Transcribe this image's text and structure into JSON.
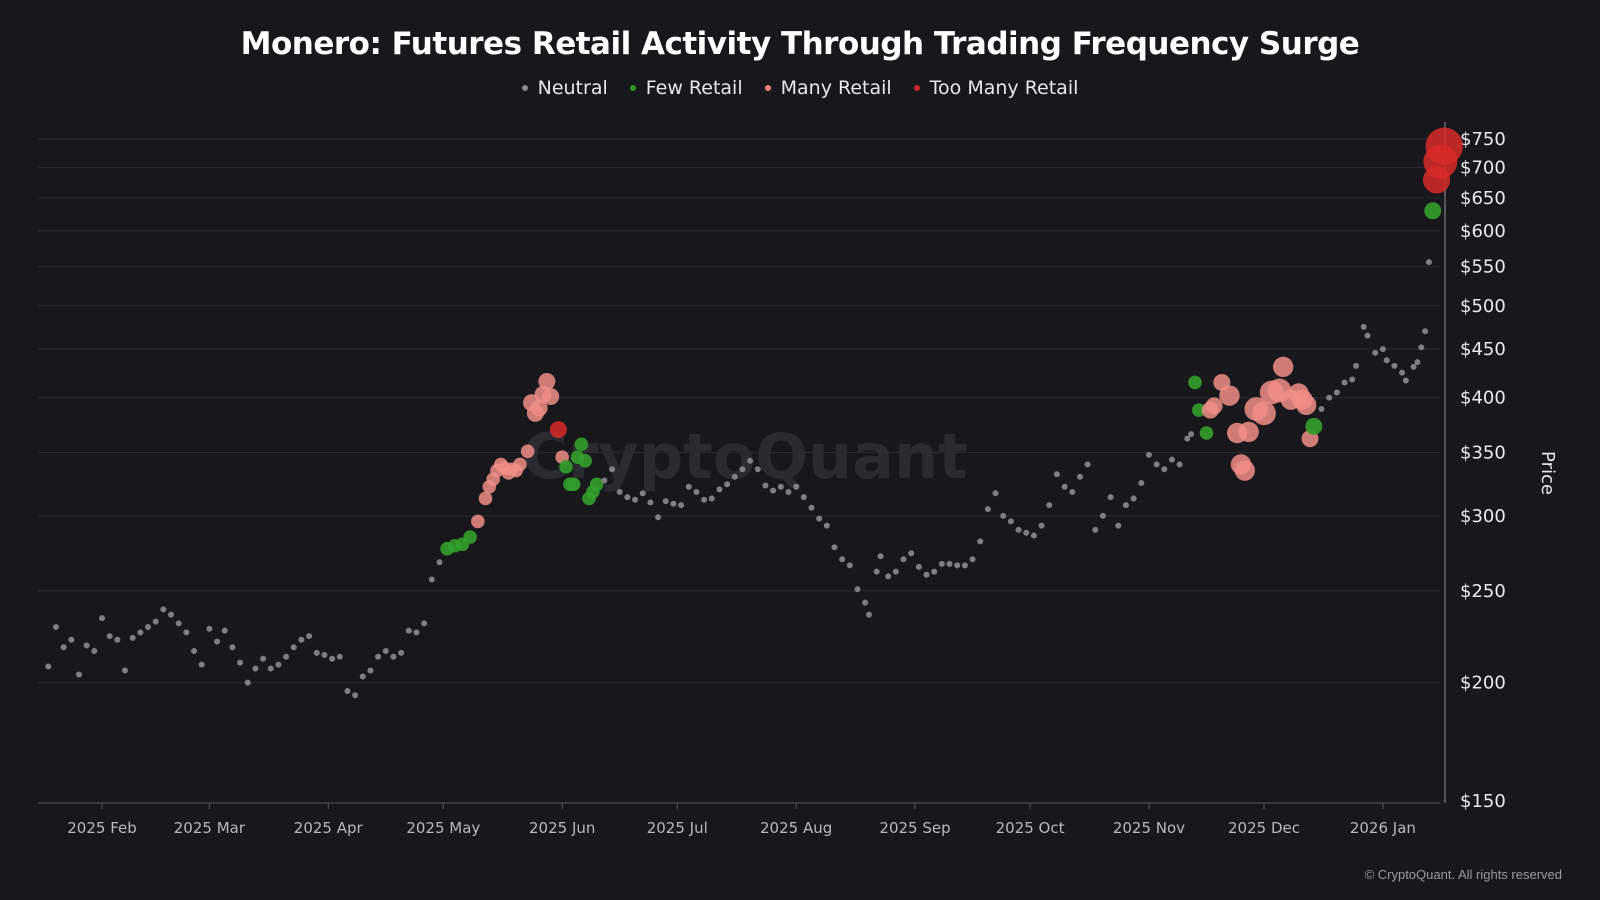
{
  "chart_data": {
    "type": "scatter",
    "title": "Monero: Futures Retail Activity Through Trading Frequency Surge",
    "ylabel": "Price",
    "xlabel": "",
    "y_scale": "log",
    "ylim": [
      150,
      760
    ],
    "y_ticks": [
      150,
      200,
      250,
      300,
      350,
      400,
      450,
      500,
      550,
      600,
      650,
      700,
      750
    ],
    "y_tick_labels": [
      "$150",
      "$200",
      "$250",
      "$300",
      "$350",
      "$400",
      "$450",
      "$500",
      "$550",
      "$600",
      "$650",
      "$700",
      "$750"
    ],
    "x_ticks": [
      "2025-02-01",
      "2025-03-01",
      "2025-04-01",
      "2025-05-01",
      "2025-06-01",
      "2025-07-01",
      "2025-08-01",
      "2025-09-01",
      "2025-10-01",
      "2025-11-01",
      "2025-12-01",
      "2026-01-01"
    ],
    "x_tick_labels": [
      "2025 Feb",
      "2025 Mar",
      "2025 Apr",
      "2025 May",
      "2025 Jun",
      "2025 Jul",
      "2025 Aug",
      "2025 Sep",
      "2025 Oct",
      "2025 Nov",
      "2025 Dec",
      "2026 Jan"
    ],
    "grid": true,
    "legend_position": "top-center",
    "series": [
      {
        "name": "Neutral",
        "color": "#8a8a94"
      },
      {
        "name": "Few Retail",
        "color": "#2f9a27"
      },
      {
        "name": "Many Retail",
        "color": "#e8857d"
      },
      {
        "name": "Too Many Retail",
        "color": "#c92a2a"
      }
    ],
    "points_columns": [
      "date",
      "price",
      "series_index",
      "relative_size"
    ],
    "points": [
      [
        "2025-01-18",
        208,
        0,
        1
      ],
      [
        "2025-01-20",
        229,
        0,
        1
      ],
      [
        "2025-01-22",
        218,
        0,
        1
      ],
      [
        "2025-01-24",
        222,
        0,
        1
      ],
      [
        "2025-01-26",
        204,
        0,
        1
      ],
      [
        "2025-01-28",
        219,
        0,
        1
      ],
      [
        "2025-01-30",
        216,
        0,
        1
      ],
      [
        "2025-02-01",
        234,
        0,
        1
      ],
      [
        "2025-02-03",
        224,
        0,
        1
      ],
      [
        "2025-02-05",
        222,
        0,
        1
      ],
      [
        "2025-02-07",
        206,
        0,
        1
      ],
      [
        "2025-02-09",
        223,
        0,
        1
      ],
      [
        "2025-02-11",
        226,
        0,
        1
      ],
      [
        "2025-02-13",
        229,
        0,
        1
      ],
      [
        "2025-02-15",
        232,
        0,
        1
      ],
      [
        "2025-02-17",
        239,
        0,
        1
      ],
      [
        "2025-02-19",
        236,
        0,
        1
      ],
      [
        "2025-02-21",
        231,
        0,
        1
      ],
      [
        "2025-02-23",
        226,
        0,
        1
      ],
      [
        "2025-02-25",
        216,
        0,
        1
      ],
      [
        "2025-02-27",
        209,
        0,
        1
      ],
      [
        "2025-03-01",
        228,
        0,
        1
      ],
      [
        "2025-03-03",
        221,
        0,
        1
      ],
      [
        "2025-03-05",
        227,
        0,
        1
      ],
      [
        "2025-03-07",
        218,
        0,
        1
      ],
      [
        "2025-03-09",
        210,
        0,
        1
      ],
      [
        "2025-03-11",
        200,
        0,
        1
      ],
      [
        "2025-03-13",
        207,
        0,
        1
      ],
      [
        "2025-03-15",
        212,
        0,
        1
      ],
      [
        "2025-03-17",
        207,
        0,
        1
      ],
      [
        "2025-03-19",
        209,
        0,
        1
      ],
      [
        "2025-03-21",
        213,
        0,
        1
      ],
      [
        "2025-03-23",
        218,
        0,
        1
      ],
      [
        "2025-03-25",
        222,
        0,
        1
      ],
      [
        "2025-03-27",
        224,
        0,
        1
      ],
      [
        "2025-03-29",
        215,
        0,
        1
      ],
      [
        "2025-03-31",
        214,
        0,
        1
      ],
      [
        "2025-04-02",
        212,
        0,
        1
      ],
      [
        "2025-04-04",
        213,
        0,
        1
      ],
      [
        "2025-04-06",
        196,
        0,
        1
      ],
      [
        "2025-04-08",
        194,
        0,
        1
      ],
      [
        "2025-04-10",
        203,
        0,
        1
      ],
      [
        "2025-04-12",
        206,
        0,
        1
      ],
      [
        "2025-04-14",
        213,
        0,
        1
      ],
      [
        "2025-04-16",
        216,
        0,
        1
      ],
      [
        "2025-04-18",
        213,
        0,
        1
      ],
      [
        "2025-04-20",
        215,
        0,
        1
      ],
      [
        "2025-04-22",
        227,
        0,
        1
      ],
      [
        "2025-04-24",
        226,
        0,
        1
      ],
      [
        "2025-04-26",
        231,
        0,
        1
      ],
      [
        "2025-04-28",
        257,
        0,
        1
      ],
      [
        "2025-04-30",
        268,
        0,
        1
      ],
      [
        "2025-05-02",
        277,
        1,
        2
      ],
      [
        "2025-05-04",
        279,
        1,
        2
      ],
      [
        "2025-05-06",
        280,
        1,
        2
      ],
      [
        "2025-05-08",
        285,
        1,
        2
      ],
      [
        "2025-05-10",
        296,
        2,
        2
      ],
      [
        "2025-05-12",
        313,
        2,
        2
      ],
      [
        "2025-05-13",
        322,
        2,
        2
      ],
      [
        "2025-05-14",
        328,
        2,
        2
      ],
      [
        "2025-05-15",
        335,
        2,
        2
      ],
      [
        "2025-05-16",
        340,
        2,
        2
      ],
      [
        "2025-05-17",
        337,
        2,
        2
      ],
      [
        "2025-05-18",
        333,
        2,
        2
      ],
      [
        "2025-05-19",
        336,
        2,
        2
      ],
      [
        "2025-05-20",
        335,
        2,
        2
      ],
      [
        "2025-05-21",
        340,
        2,
        2
      ],
      [
        "2025-05-23",
        351,
        2,
        2
      ],
      [
        "2025-05-24",
        395,
        2,
        2.5
      ],
      [
        "2025-05-25",
        385,
        2,
        2.5
      ],
      [
        "2025-05-26",
        390,
        2,
        2.5
      ],
      [
        "2025-05-27",
        403,
        2,
        2.5
      ],
      [
        "2025-05-28",
        416,
        2,
        2.5
      ],
      [
        "2025-05-29",
        401,
        2,
        2.5
      ],
      [
        "2025-05-31",
        370,
        3,
        2.5
      ],
      [
        "2025-06-01",
        346,
        2,
        2
      ],
      [
        "2025-06-02",
        338,
        1,
        2
      ],
      [
        "2025-06-03",
        324,
        1,
        2
      ],
      [
        "2025-06-04",
        324,
        1,
        2
      ],
      [
        "2025-06-05",
        346,
        1,
        2
      ],
      [
        "2025-06-06",
        357,
        1,
        2
      ],
      [
        "2025-06-07",
        343,
        1,
        2
      ],
      [
        "2025-06-08",
        313,
        1,
        2
      ],
      [
        "2025-06-09",
        318,
        1,
        2
      ],
      [
        "2025-06-10",
        324,
        1,
        2
      ],
      [
        "2025-06-12",
        327,
        0,
        1
      ],
      [
        "2025-06-14",
        336,
        0,
        1
      ],
      [
        "2025-06-16",
        318,
        0,
        1
      ],
      [
        "2025-06-18",
        314,
        0,
        1
      ],
      [
        "2025-06-20",
        312,
        0,
        1
      ],
      [
        "2025-06-22",
        317,
        0,
        1
      ],
      [
        "2025-06-24",
        310,
        0,
        1
      ],
      [
        "2025-06-26",
        299,
        0,
        1
      ],
      [
        "2025-06-28",
        311,
        0,
        1
      ],
      [
        "2025-06-30",
        309,
        0,
        1
      ],
      [
        "2025-07-02",
        308,
        0,
        1
      ],
      [
        "2025-07-04",
        322,
        0,
        1
      ],
      [
        "2025-07-06",
        318,
        0,
        1
      ],
      [
        "2025-07-08",
        312,
        0,
        1
      ],
      [
        "2025-07-10",
        313,
        0,
        1
      ],
      [
        "2025-07-12",
        320,
        0,
        1
      ],
      [
        "2025-07-14",
        324,
        0,
        1
      ],
      [
        "2025-07-16",
        330,
        0,
        1
      ],
      [
        "2025-07-18",
        336,
        0,
        1
      ],
      [
        "2025-07-20",
        343,
        0,
        1
      ],
      [
        "2025-07-22",
        336,
        0,
        1
      ],
      [
        "2025-07-24",
        323,
        0,
        1
      ],
      [
        "2025-07-26",
        319,
        0,
        1
      ],
      [
        "2025-07-28",
        322,
        0,
        1
      ],
      [
        "2025-07-30",
        318,
        0,
        1
      ],
      [
        "2025-08-01",
        322,
        0,
        1
      ],
      [
        "2025-08-03",
        314,
        0,
        1
      ],
      [
        "2025-08-05",
        306,
        0,
        1
      ],
      [
        "2025-08-07",
        298,
        0,
        1
      ],
      [
        "2025-08-09",
        293,
        0,
        1
      ],
      [
        "2025-08-11",
        278,
        0,
        1
      ],
      [
        "2025-08-13",
        270,
        0,
        1
      ],
      [
        "2025-08-15",
        266,
        0,
        1
      ],
      [
        "2025-08-17",
        251,
        0,
        1
      ],
      [
        "2025-08-19",
        243,
        0,
        1
      ],
      [
        "2025-08-20",
        236,
        0,
        1
      ],
      [
        "2025-08-22",
        262,
        0,
        1
      ],
      [
        "2025-08-23",
        272,
        0,
        1
      ],
      [
        "2025-08-25",
        259,
        0,
        1
      ],
      [
        "2025-08-27",
        262,
        0,
        1
      ],
      [
        "2025-08-29",
        270,
        0,
        1
      ],
      [
        "2025-08-31",
        274,
        0,
        1
      ],
      [
        "2025-09-02",
        265,
        0,
        1
      ],
      [
        "2025-09-04",
        260,
        0,
        1
      ],
      [
        "2025-09-06",
        262,
        0,
        1
      ],
      [
        "2025-09-08",
        267,
        0,
        1
      ],
      [
        "2025-09-10",
        267,
        0,
        1
      ],
      [
        "2025-09-12",
        266,
        0,
        1
      ],
      [
        "2025-09-14",
        266,
        0,
        1
      ],
      [
        "2025-09-16",
        270,
        0,
        1
      ],
      [
        "2025-09-18",
        282,
        0,
        1
      ],
      [
        "2025-09-20",
        305,
        0,
        1
      ],
      [
        "2025-09-22",
        317,
        0,
        1
      ],
      [
        "2025-09-24",
        300,
        0,
        1
      ],
      [
        "2025-09-26",
        296,
        0,
        1
      ],
      [
        "2025-09-28",
        290,
        0,
        1
      ],
      [
        "2025-09-30",
        288,
        0,
        1
      ],
      [
        "2025-10-02",
        286,
        0,
        1
      ],
      [
        "2025-10-04",
        293,
        0,
        1
      ],
      [
        "2025-10-06",
        308,
        0,
        1
      ],
      [
        "2025-10-08",
        332,
        0,
        1
      ],
      [
        "2025-10-10",
        322,
        0,
        1
      ],
      [
        "2025-10-12",
        318,
        0,
        1
      ],
      [
        "2025-10-14",
        330,
        0,
        1
      ],
      [
        "2025-10-16",
        340,
        0,
        1
      ],
      [
        "2025-10-18",
        290,
        0,
        1
      ],
      [
        "2025-10-20",
        300,
        0,
        1
      ],
      [
        "2025-10-22",
        314,
        0,
        1
      ],
      [
        "2025-10-24",
        293,
        0,
        1
      ],
      [
        "2025-10-26",
        308,
        0,
        1
      ],
      [
        "2025-10-28",
        313,
        0,
        1
      ],
      [
        "2025-10-30",
        325,
        0,
        1
      ],
      [
        "2025-11-01",
        348,
        0,
        1
      ],
      [
        "2025-11-03",
        340,
        0,
        1
      ],
      [
        "2025-11-05",
        336,
        0,
        1
      ],
      [
        "2025-11-07",
        344,
        0,
        1
      ],
      [
        "2025-11-09",
        340,
        0,
        1
      ],
      [
        "2025-11-11",
        362,
        0,
        1
      ],
      [
        "2025-11-12",
        366,
        0,
        1
      ],
      [
        "2025-11-13",
        415,
        1,
        2
      ],
      [
        "2025-11-14",
        388,
        1,
        2
      ],
      [
        "2025-11-16",
        367,
        1,
        2
      ],
      [
        "2025-11-17",
        388,
        2,
        2.5
      ],
      [
        "2025-11-18",
        392,
        2,
        2.5
      ],
      [
        "2025-11-20",
        415,
        2,
        2.5
      ],
      [
        "2025-11-22",
        402,
        2,
        3
      ],
      [
        "2025-11-24",
        367,
        2,
        3
      ],
      [
        "2025-11-25",
        340,
        2,
        3
      ],
      [
        "2025-11-26",
        335,
        2,
        3
      ],
      [
        "2025-11-27",
        368,
        2,
        3
      ],
      [
        "2025-11-29",
        389,
        2,
        3.5
      ],
      [
        "2025-12-01",
        385,
        2,
        3.5
      ],
      [
        "2025-12-03",
        405,
        2,
        3.5
      ],
      [
        "2025-12-05",
        407,
        2,
        3.5
      ],
      [
        "2025-12-06",
        431,
        2,
        3
      ],
      [
        "2025-12-08",
        398,
        2,
        3
      ],
      [
        "2025-12-10",
        404,
        2,
        3
      ],
      [
        "2025-12-11",
        398,
        2,
        3
      ],
      [
        "2025-12-12",
        393,
        2,
        3
      ],
      [
        "2025-12-13",
        362,
        2,
        2.5
      ],
      [
        "2025-12-14",
        373,
        1,
        2.5
      ],
      [
        "2025-12-16",
        389,
        0,
        1
      ],
      [
        "2025-12-18",
        400,
        0,
        1
      ],
      [
        "2025-12-20",
        405,
        0,
        1
      ],
      [
        "2025-12-22",
        415,
        0,
        1
      ],
      [
        "2025-12-24",
        418,
        0,
        1
      ],
      [
        "2025-12-25",
        432,
        0,
        1
      ],
      [
        "2025-12-27",
        475,
        0,
        1
      ],
      [
        "2025-12-28",
        465,
        0,
        1
      ],
      [
        "2025-12-30",
        446,
        0,
        1
      ],
      [
        "2026-01-01",
        450,
        0,
        1
      ],
      [
        "2026-01-02",
        438,
        0,
        1
      ],
      [
        "2026-01-04",
        432,
        0,
        1
      ],
      [
        "2026-01-06",
        425,
        0,
        1
      ],
      [
        "2026-01-07",
        417,
        0,
        1
      ],
      [
        "2026-01-09",
        431,
        0,
        1
      ],
      [
        "2026-01-10",
        436,
        0,
        1
      ],
      [
        "2026-01-11",
        452,
        0,
        1
      ],
      [
        "2026-01-12",
        470,
        0,
        1
      ],
      [
        "2026-01-13",
        556,
        0,
        1
      ],
      [
        "2026-01-14",
        630,
        1,
        2.5
      ],
      [
        "2026-01-15",
        679,
        3,
        4
      ],
      [
        "2026-01-16",
        710,
        3,
        5
      ],
      [
        "2026-01-17",
        737,
        3,
        5.5
      ]
    ]
  },
  "watermark": "CryptoQuant",
  "copyright": "© CryptoQuant. All rights reserved"
}
